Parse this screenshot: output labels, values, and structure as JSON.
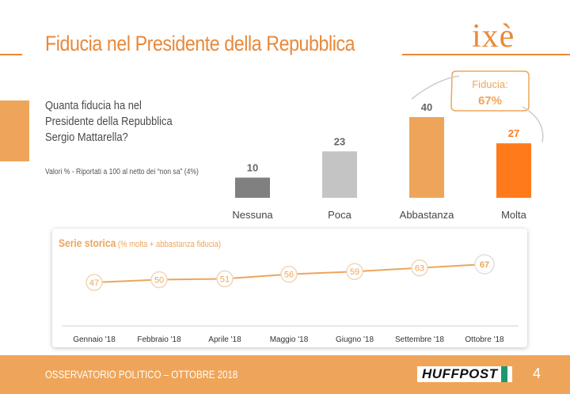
{
  "header": {
    "title": "Fiducia nel Presidente della Repubblica",
    "logo": "ixè"
  },
  "question": {
    "line1": "Quanta fiducia ha nel",
    "line2": "Presidente della Repubblica",
    "line3": "Sergio Mattarella?"
  },
  "note": "Valori % - Riportati a 100 al netto dei “non sa” (4%)",
  "callout": {
    "label": "Fiducia:",
    "value": "67%"
  },
  "serie": {
    "title": "Serie storica",
    "subtitle": " (% molta + abbastanza fiducia)"
  },
  "footer": {
    "text": "OSSERVATORIO POLITICO – OTTOBRE 2018",
    "brand": "HUFFPOST",
    "page": "4"
  },
  "colors": {
    "accent": "#eea55a",
    "orange": "#ff7a1a",
    "dark_gray": "#808080",
    "light_gray": "#c4c4c4"
  },
  "chart_data": [
    {
      "type": "bar",
      "categories": [
        "Nessuna",
        "Poca",
        "Abbastanza",
        "Molta"
      ],
      "values": [
        10,
        23,
        40,
        27
      ],
      "colors": [
        "#808080",
        "#c4c4c4",
        "#eea55a",
        "#ff7a1a"
      ]
    },
    {
      "type": "line",
      "categories": [
        "Gennaio '18",
        "Febbraio '18",
        "Aprile '18",
        "Maggio '18",
        "Giugno '18",
        "Settembre '18",
        "Ottobre '18"
      ],
      "values": [
        47,
        50,
        51,
        56,
        59,
        63,
        67
      ],
      "color": "#eea55a"
    }
  ]
}
